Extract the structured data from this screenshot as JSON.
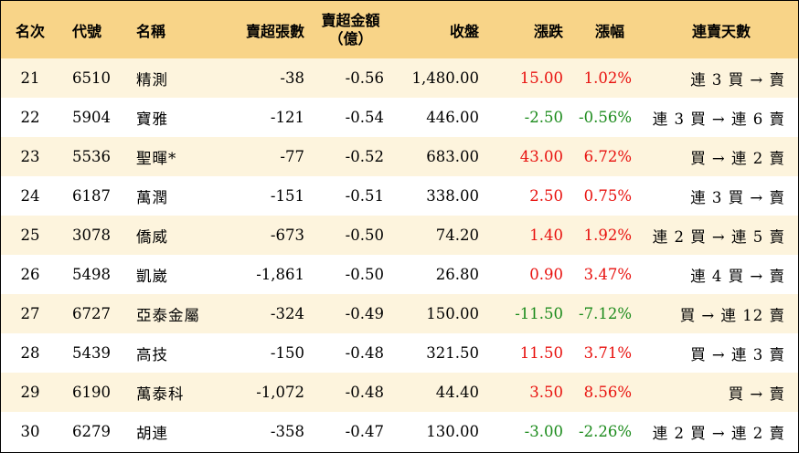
{
  "headers": {
    "rank": "名次",
    "code": "代號",
    "name": "名稱",
    "net_sell_lots": "賣超張數",
    "net_sell_amount_line1": "賣超金額",
    "net_sell_amount_line2": "（億）",
    "close": "收盤",
    "change": "漲跌",
    "change_pct": "漲幅",
    "streak": "連賣天數"
  },
  "rows": [
    {
      "rank": "21",
      "code": "6510",
      "name": "精測",
      "net_sell_lots": "-38",
      "net_sell_amount": "-0.56",
      "close": "1,480.00",
      "change": "15.00",
      "change_pct": "1.02%",
      "dir": "up",
      "streak": "連 3 買 → 賣"
    },
    {
      "rank": "22",
      "code": "5904",
      "name": "寶雅",
      "net_sell_lots": "-121",
      "net_sell_amount": "-0.54",
      "close": "446.00",
      "change": "-2.50",
      "change_pct": "-0.56%",
      "dir": "down",
      "streak": "連 3 買 → 連 6 賣"
    },
    {
      "rank": "23",
      "code": "5536",
      "name": "聖暉*",
      "net_sell_lots": "-77",
      "net_sell_amount": "-0.52",
      "close": "683.00",
      "change": "43.00",
      "change_pct": "6.72%",
      "dir": "up",
      "streak": "買 → 連 2 賣"
    },
    {
      "rank": "24",
      "code": "6187",
      "name": "萬潤",
      "net_sell_lots": "-151",
      "net_sell_amount": "-0.51",
      "close": "338.00",
      "change": "2.50",
      "change_pct": "0.75%",
      "dir": "up",
      "streak": "連 3 買 → 賣"
    },
    {
      "rank": "25",
      "code": "3078",
      "name": "僑威",
      "net_sell_lots": "-673",
      "net_sell_amount": "-0.50",
      "close": "74.20",
      "change": "1.40",
      "change_pct": "1.92%",
      "dir": "up",
      "streak": "連 2 買 → 連 5 賣"
    },
    {
      "rank": "26",
      "code": "5498",
      "name": "凱崴",
      "net_sell_lots": "-1,861",
      "net_sell_amount": "-0.50",
      "close": "26.80",
      "change": "0.90",
      "change_pct": "3.47%",
      "dir": "up",
      "streak": "連 4 買 → 賣"
    },
    {
      "rank": "27",
      "code": "6727",
      "name": "亞泰金屬",
      "net_sell_lots": "-324",
      "net_sell_amount": "-0.49",
      "close": "150.00",
      "change": "-11.50",
      "change_pct": "-7.12%",
      "dir": "down",
      "streak": "買 → 連 12 賣"
    },
    {
      "rank": "28",
      "code": "5439",
      "name": "高技",
      "net_sell_lots": "-150",
      "net_sell_amount": "-0.48",
      "close": "321.50",
      "change": "11.50",
      "change_pct": "3.71%",
      "dir": "up",
      "streak": "買 → 連 3 賣"
    },
    {
      "rank": "29",
      "code": "6190",
      "name": "萬泰科",
      "net_sell_lots": "-1,072",
      "net_sell_amount": "-0.48",
      "close": "44.40",
      "change": "3.50",
      "change_pct": "8.56%",
      "dir": "up",
      "streak": "買 → 賣"
    },
    {
      "rank": "30",
      "code": "6279",
      "name": "胡連",
      "net_sell_lots": "-358",
      "net_sell_amount": "-0.47",
      "close": "130.00",
      "change": "-3.00",
      "change_pct": "-2.26%",
      "dir": "down",
      "streak": "連 2 買 → 連 2 賣"
    }
  ],
  "colors": {
    "header_bg": "#f8d488",
    "stripe_bg": "#fdf4dd",
    "up": "#e8110e",
    "down": "#1c8b1c"
  }
}
